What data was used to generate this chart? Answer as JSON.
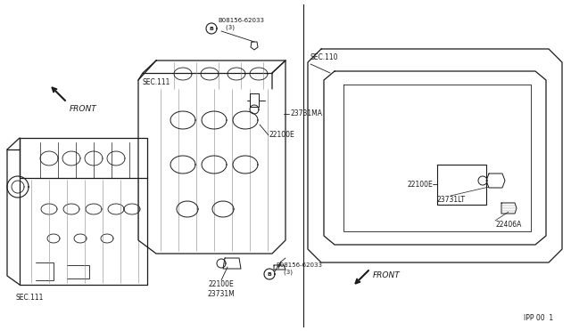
{
  "bg_color": "#ffffff",
  "line_color": "#1a1a1a",
  "fig_width": 6.4,
  "fig_height": 3.72,
  "dpi": 100,
  "labels": {
    "B08156_top": "B08156-62033\n    (3)",
    "SEC111_top": "SEC.111",
    "lbl_23731MA": "23731MA",
    "lbl_22100E_top": "22100E",
    "lbl_22100E_bot": "22100E",
    "lbl_23731M": "23731M",
    "B08156_bot": "B08156-62033\n    (3)",
    "SEC111_bot": "SEC.111",
    "FRONT_left": "FRONT",
    "SEC110": "SEC.110",
    "lbl_22100E_right": "22100E",
    "lbl_23731LT": "23731LT",
    "lbl_22406A": "22406A",
    "FRONT_right": "FRONT",
    "ref_num": "IPP 00  1"
  }
}
